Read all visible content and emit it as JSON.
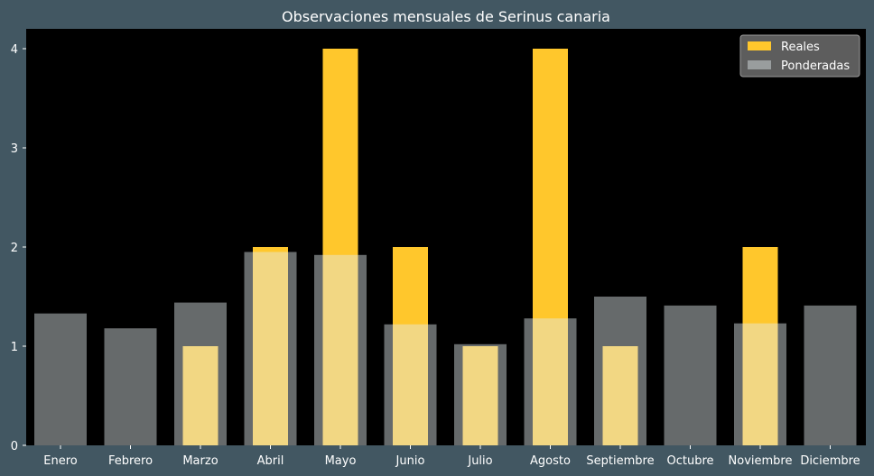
{
  "chart_data": {
    "type": "bar",
    "title": "Observaciones mensuales de Serinus canaria",
    "categories": [
      "Enero",
      "Febrero",
      "Marzo",
      "Abril",
      "Mayo",
      "Junio",
      "Julio",
      "Agosto",
      "Septiembre",
      "Octubre",
      "Noviembre",
      "Diciembre"
    ],
    "series": [
      {
        "name": "Reales",
        "values": [
          0,
          0,
          1,
          2,
          4,
          2,
          1,
          4,
          1,
          0,
          2,
          0
        ]
      },
      {
        "name": "Ponderadas",
        "values": [
          1.33,
          1.18,
          1.44,
          1.95,
          1.92,
          1.22,
          1.02,
          1.28,
          1.5,
          1.41,
          1.23,
          1.41
        ]
      }
    ],
    "ylim": [
      0,
      4.2
    ],
    "yticks": [
      0,
      1,
      2,
      3,
      4
    ],
    "xlabel": "",
    "ylabel": "",
    "grid": false,
    "legend_position": "top-right"
  },
  "colors": {
    "background": "#425762",
    "plot_area": "#000000",
    "reales": "#ffc72c",
    "ponderadas": "#e3ecee",
    "ponderadas_opacity": 0.45,
    "text": "#ffffff"
  }
}
